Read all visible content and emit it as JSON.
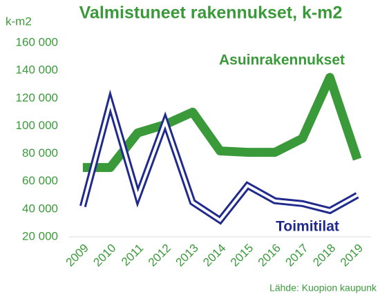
{
  "chart_data": {
    "type": "line",
    "title": "Valmistuneet rakennukset, k-m2",
    "y_label": "k-m2",
    "source": "Lähde: Kuopion kaupunk",
    "categories": [
      "2009",
      "2010",
      "2011",
      "2012",
      "2013",
      "2014",
      "2015",
      "2016",
      "2017",
      "2018",
      "2019"
    ],
    "series": [
      {
        "name": "Asuinrakennukset",
        "color": "#3a9a3a",
        "values": [
          70000,
          70000,
          95000,
          101000,
          110000,
          82000,
          81000,
          81000,
          91000,
          135000,
          76000
        ]
      },
      {
        "name": "Toimitilat",
        "color": "#1f2a8c",
        "values": [
          42000,
          117000,
          49000,
          103000,
          45000,
          32000,
          57000,
          46000,
          44000,
          39000,
          50000
        ]
      }
    ],
    "ylim": [
      20000,
      160000
    ],
    "yticks": [
      {
        "value": 20000,
        "label": "20 000"
      },
      {
        "value": 40000,
        "label": "40 000"
      },
      {
        "value": 60000,
        "label": "60 000"
      },
      {
        "value": 80000,
        "label": "80 000"
      },
      {
        "value": 100000,
        "label": "100 000"
      },
      {
        "value": 120000,
        "label": "120 000"
      },
      {
        "value": 140000,
        "label": "140 000"
      },
      {
        "value": 160000,
        "label": "160 000"
      }
    ],
    "grid": false
  }
}
